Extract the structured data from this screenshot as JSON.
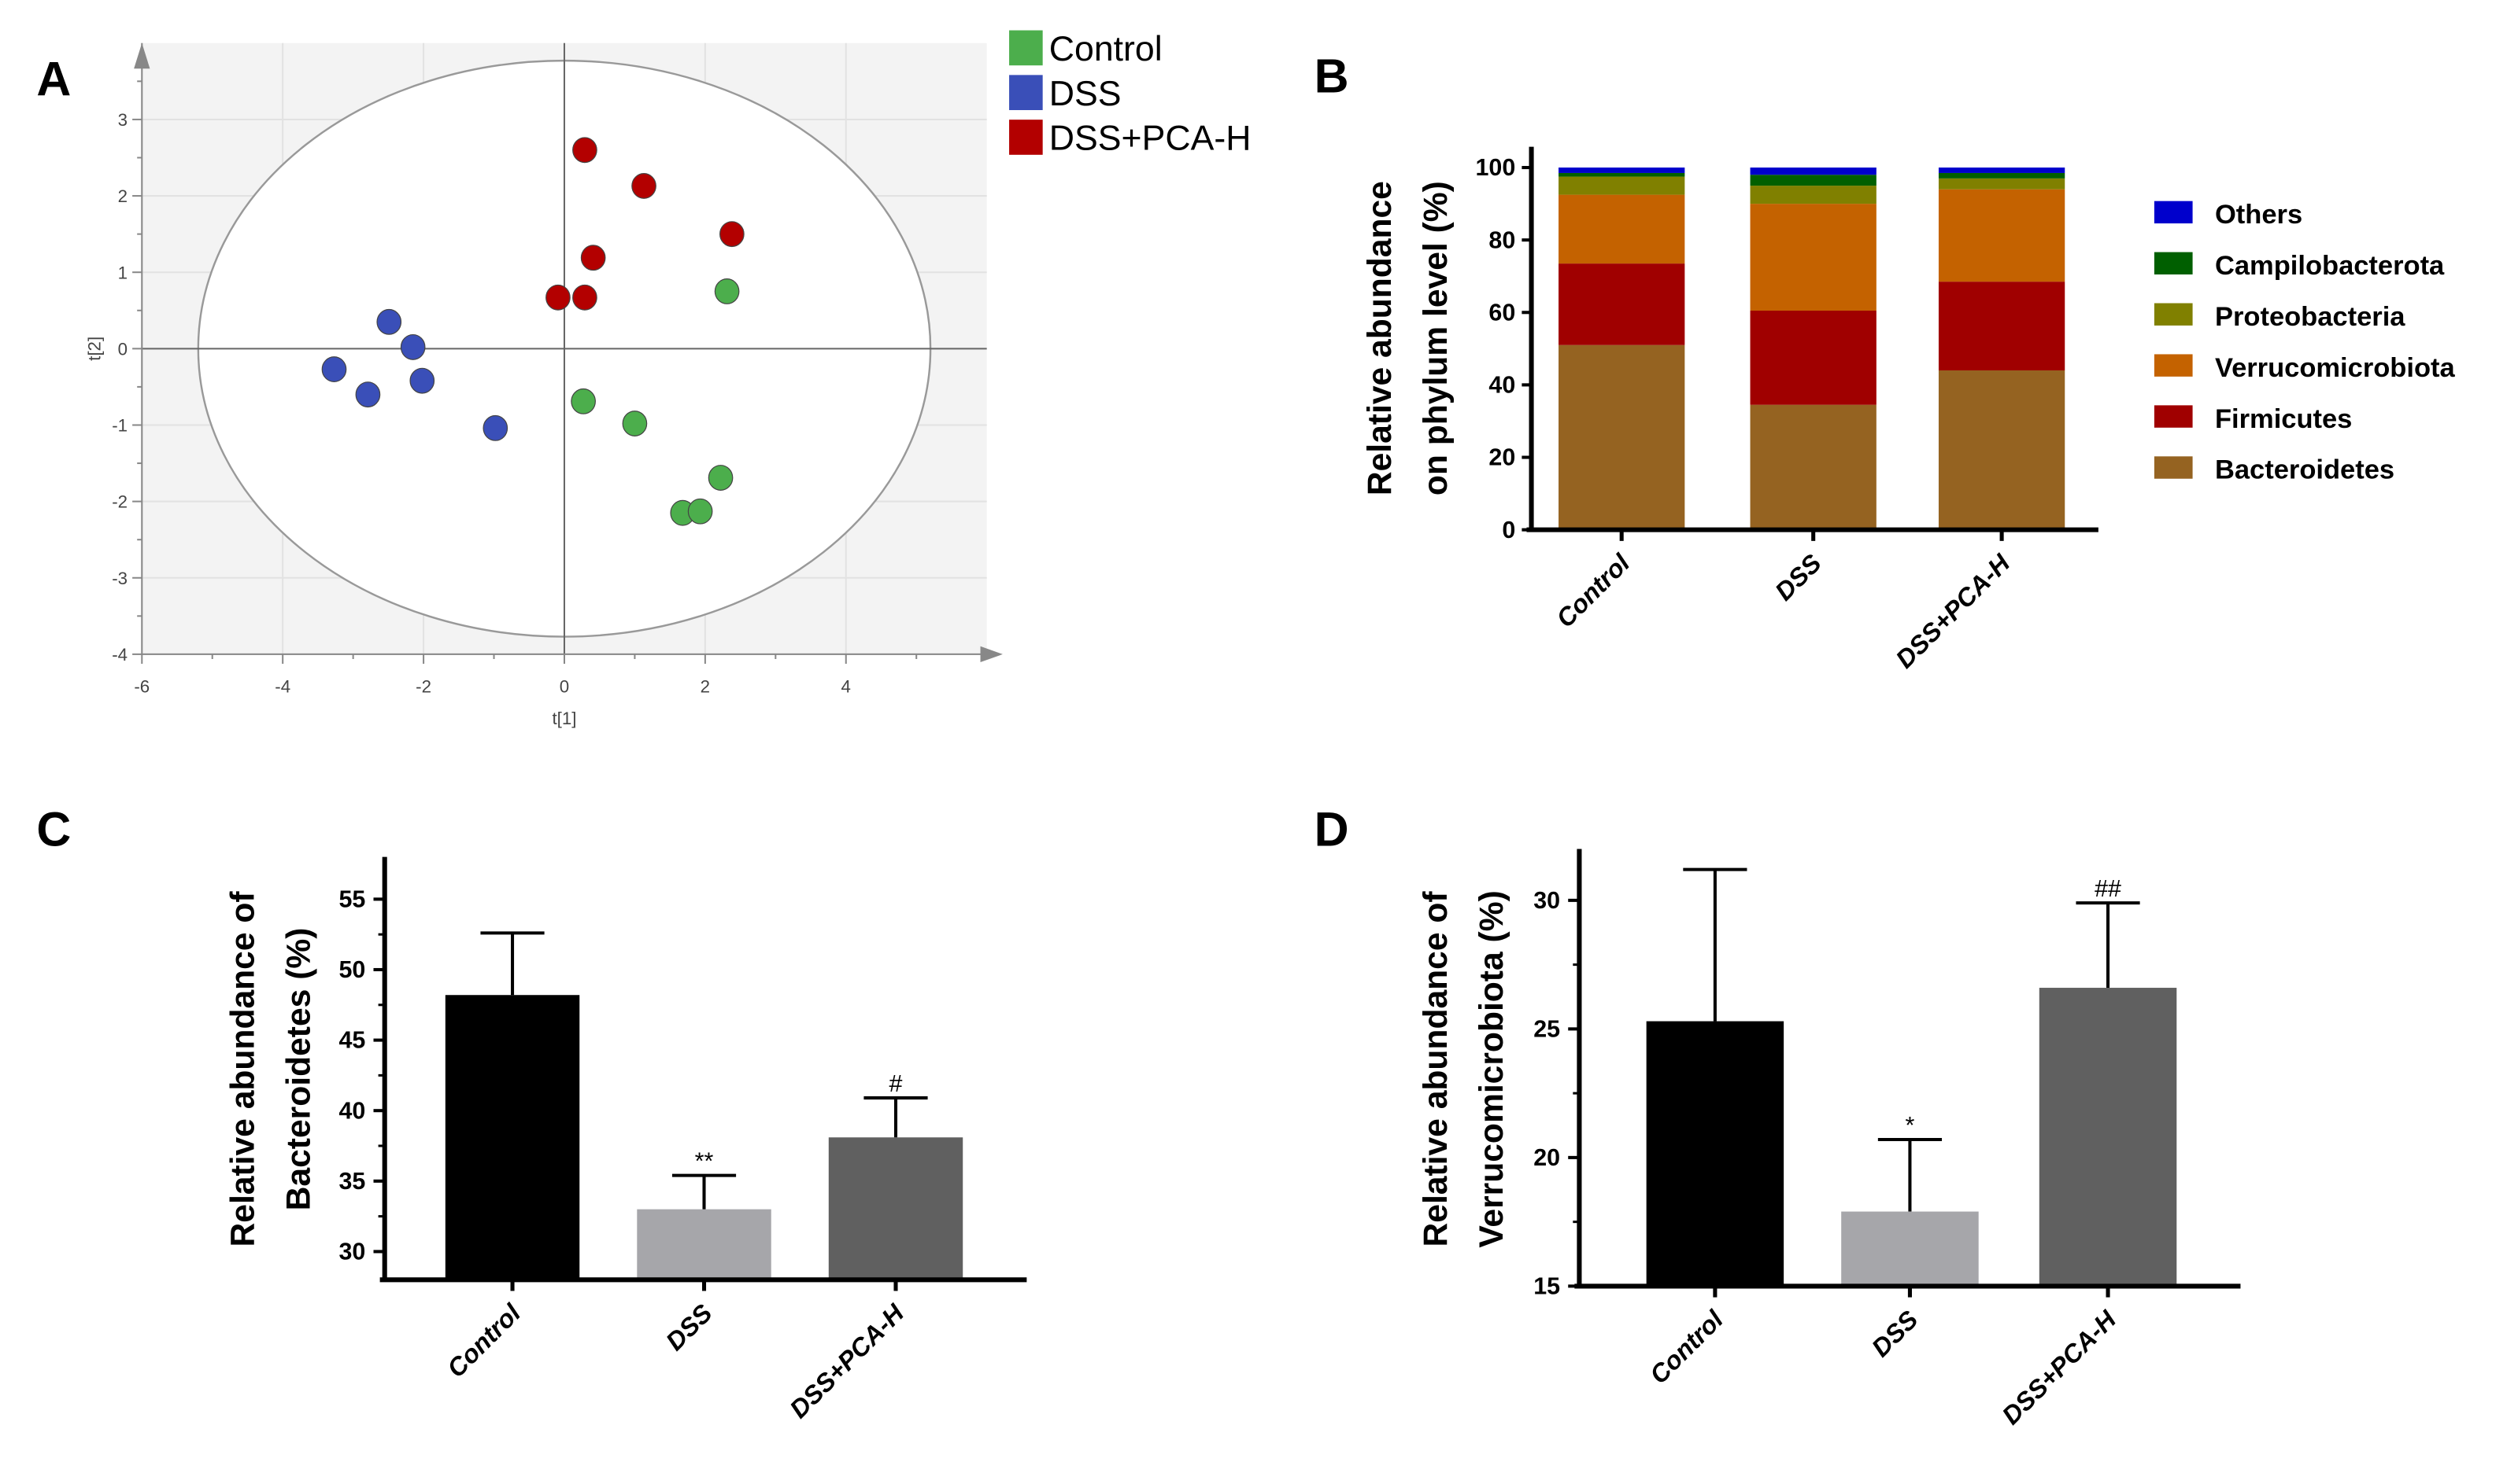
{
  "panels": {
    "a": "A",
    "b": "B",
    "c": "C",
    "d": "D"
  },
  "chart_data": [
    {
      "type": "scatter",
      "title": "",
      "xlabel": "t[1]",
      "ylabel": "t[2]",
      "xlim": [
        -6,
        6
      ],
      "ylim": [
        -4,
        4
      ],
      "xticks": [
        -6,
        -4,
        -2,
        0,
        2,
        4
      ],
      "yticks": [
        -4,
        -3,
        -2,
        -1,
        0,
        1,
        2,
        3
      ],
      "ellipse": {
        "rx": 5.2,
        "ry": 3.77
      },
      "legend_position": "top-right",
      "series": [
        {
          "name": "Control",
          "color": "#4cae4c",
          "points": [
            [
              2.31,
              0.75
            ],
            [
              0.27,
              -0.69
            ],
            [
              1.0,
              -0.98
            ],
            [
              2.22,
              -1.69
            ],
            [
              1.68,
              -2.15
            ],
            [
              1.93,
              -2.13
            ]
          ]
        },
        {
          "name": "DSS",
          "color": "#3a4fb8",
          "points": [
            [
              -2.49,
              0.35
            ],
            [
              -2.15,
              0.02
            ],
            [
              -3.27,
              -0.27
            ],
            [
              -2.02,
              -0.42
            ],
            [
              -2.79,
              -0.6
            ],
            [
              -0.98,
              -1.04
            ]
          ]
        },
        {
          "name": "DSS+PCA-H",
          "color": "#b30000",
          "points": [
            [
              0.29,
              2.6
            ],
            [
              1.13,
              2.13
            ],
            [
              2.38,
              1.5
            ],
            [
              0.41,
              1.19
            ],
            [
              -0.09,
              0.67
            ],
            [
              0.29,
              0.67
            ]
          ]
        }
      ]
    },
    {
      "type": "bar",
      "stacked": true,
      "categories": [
        "Control",
        "DSS",
        "DSS+PCA-H"
      ],
      "ylabel": [
        "Relative abundance",
        "on phylum level (%)"
      ],
      "ylim": [
        0,
        105
      ],
      "yticks": [
        0,
        20,
        40,
        60,
        80,
        100
      ],
      "legend_position": "right",
      "series": [
        {
          "name": "Bacteroidetes",
          "color": "#956321",
          "values": [
            51,
            34.5,
            44
          ]
        },
        {
          "name": "Firmicutes",
          "color": "#a00000",
          "values": [
            22.5,
            26,
            24.5
          ]
        },
        {
          "name": "Verrucomicrobiota",
          "color": "#c46200",
          "values": [
            19,
            29.5,
            25.5
          ]
        },
        {
          "name": "Proteobacteria",
          "color": "#808000",
          "values": [
            5,
            5,
            3
          ]
        },
        {
          "name": "Campilobacterota",
          "color": "#005f00",
          "values": [
            1,
            3,
            1.5
          ]
        },
        {
          "name": "Others",
          "color": "#0000cc",
          "values": [
            1.5,
            2,
            1.5
          ]
        }
      ]
    },
    {
      "type": "bar",
      "categories": [
        "Control",
        "DSS",
        "DSS+PCA-H"
      ],
      "values": [
        48.2,
        33.0,
        38.1
      ],
      "errors": [
        4.4,
        2.4,
        2.8
      ],
      "annotations": [
        "",
        "**",
        "#"
      ],
      "colors": [
        "#000000",
        "#a6a6aa",
        "#606060"
      ],
      "ylabel": [
        "Relative abundance of",
        "Bacteroidetes (%)"
      ],
      "ylim": [
        28,
        58
      ],
      "yticks": [
        30,
        35,
        40,
        45,
        50,
        55
      ]
    },
    {
      "type": "bar",
      "categories": [
        "Control",
        "DSS",
        "DSS+PCA-H"
      ],
      "values": [
        25.3,
        17.9,
        26.6
      ],
      "errors": [
        5.9,
        2.8,
        3.3
      ],
      "annotations": [
        "",
        "*",
        "##"
      ],
      "colors": [
        "#000000",
        "#a6a6aa",
        "#606060"
      ],
      "ylabel": [
        "Relative abundance of",
        "Verrucomicrobiota (%)"
      ],
      "ylim": [
        15,
        32
      ],
      "yticks": [
        15,
        20,
        25,
        30
      ]
    }
  ]
}
